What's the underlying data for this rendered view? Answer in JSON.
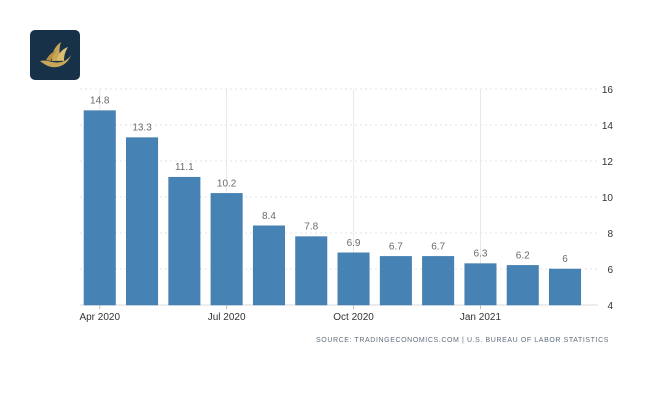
{
  "colors": {
    "bar": "#4682b4",
    "bar_stroke": "#3f79aa",
    "grid": "#e3e3e3",
    "vertical_grid": "#e8e8e8",
    "axis": "#d8d8d8",
    "logo_bg": "#173149",
    "logo_accent": "#c7a657"
  },
  "logo": {
    "icon": "gold-bird-logo-icon"
  },
  "chart_data": {
    "type": "bar",
    "categories": [
      "Apr 2020",
      "May 2020",
      "Jun 2020",
      "Jul 2020",
      "Aug 2020",
      "Sep 2020",
      "Oct 2020",
      "Nov 2020",
      "Dec 2020",
      "Jan 2021",
      "Feb 2021",
      "Mar 2021"
    ],
    "values": [
      14.8,
      13.3,
      11.1,
      10.2,
      8.4,
      7.8,
      6.9,
      6.7,
      6.7,
      6.3,
      6.2,
      6
    ],
    "value_labels": [
      "14.8",
      "13.3",
      "11.1",
      "10.2",
      "8.4",
      "7.8",
      "6.9",
      "6.7",
      "6.7",
      "6.3",
      "6.2",
      "6"
    ],
    "x_tick_labels": [
      {
        "category": "Apr 2020",
        "label": "Apr 2020"
      },
      {
        "category": "Jul 2020",
        "label": "Jul 2020"
      },
      {
        "category": "Oct 2020",
        "label": "Oct 2020"
      },
      {
        "category": "Jan 2021",
        "label": "Jan 2021"
      }
    ],
    "y_ticks": [
      4,
      6,
      8,
      10,
      12,
      14,
      16
    ],
    "ylim": [
      4,
      16
    ],
    "y_axis_position": "right",
    "grid": true,
    "legend": "none",
    "source": "SOURCE: TRADINGECONOMICS.COM | U.S. BUREAU OF LABOR STATISTICS"
  }
}
